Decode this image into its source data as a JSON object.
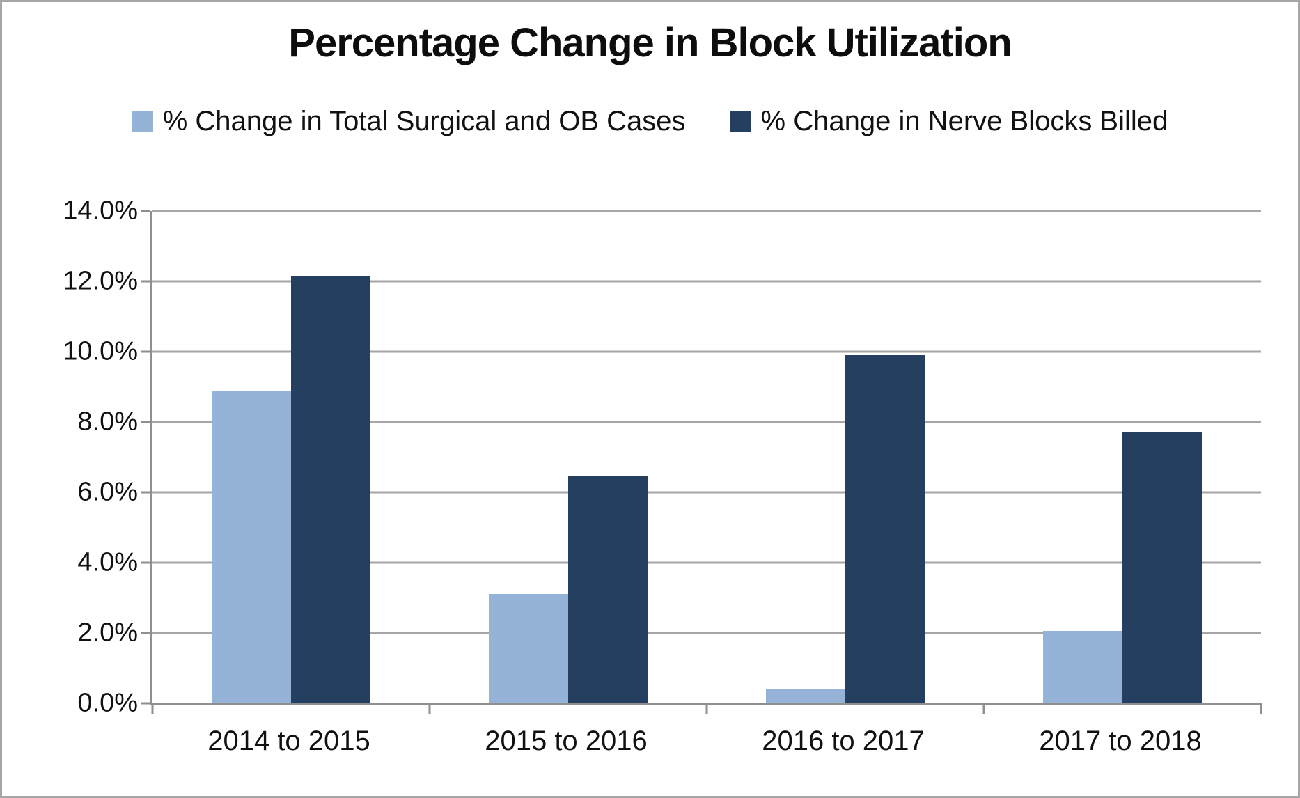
{
  "chart_data": {
    "type": "bar",
    "title": "Percentage Change in Block Utilization",
    "categories": [
      "2014 to 2015",
      "2015 to 2016",
      "2016 to 2017",
      "2017 to 2018"
    ],
    "series": [
      {
        "name": "% Change in Total Surgical and OB Cases",
        "color": "#95B3D7",
        "values": [
          8.9,
          3.1,
          0.4,
          2.05
        ]
      },
      {
        "name": "% Change in Nerve Blocks Billed",
        "color": "#243F60",
        "values": [
          12.15,
          6.45,
          9.9,
          7.7
        ]
      }
    ],
    "xlabel": "",
    "ylabel": "",
    "ylim": [
      0,
      14
    ],
    "ytick_step": 2,
    "ytick_labels": [
      "0.0%",
      "2.0%",
      "4.0%",
      "6.0%",
      "8.0%",
      "10.0%",
      "12.0%",
      "14.0%"
    ],
    "grid": true,
    "legend_position": "top"
  },
  "colors": {
    "gridline": "#A6A6A6",
    "axis": "#8F8F8F",
    "frame_border": "#A6A6A6",
    "text": "#111111",
    "background": "#FFFFFF"
  }
}
